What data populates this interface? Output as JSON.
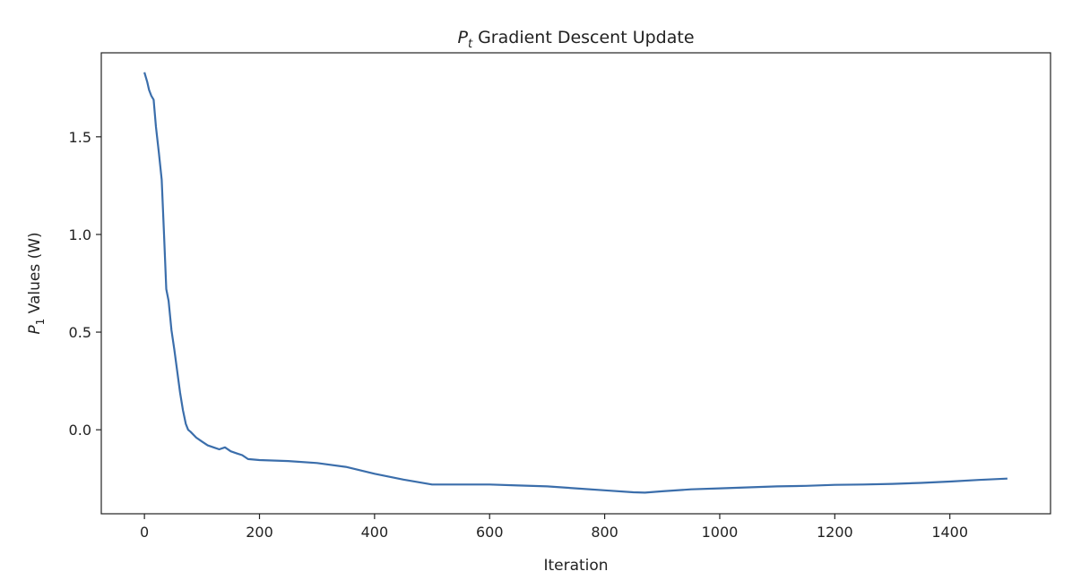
{
  "chart_data": {
    "type": "line",
    "title": {
      "symbol": "P",
      "subscript": "t",
      "text": " Gradient Descent Update"
    },
    "xlabel": "Iteration",
    "ylabel": {
      "symbol": "P",
      "subscript": "1",
      "text": " Values (W)"
    },
    "xlim": [
      -75,
      1575
    ],
    "ylim": [
      -0.43,
      1.93
    ],
    "xticks": [
      0,
      200,
      400,
      600,
      800,
      1000,
      1200,
      1400
    ],
    "xtick_labels": [
      "0",
      "200",
      "400",
      "600",
      "800",
      "1000",
      "1200",
      "1400"
    ],
    "yticks": [
      0.0,
      0.5,
      1.0,
      1.5
    ],
    "ytick_labels": [
      "0.0",
      "0.5",
      "1.0",
      "1.5"
    ],
    "grid": false,
    "colors": {
      "line": "#3b6eab",
      "axes": "#222222"
    },
    "series": [
      {
        "x": [
          0,
          5,
          8,
          12,
          16,
          20,
          25,
          30,
          34,
          38,
          42,
          47,
          52,
          57,
          62,
          67,
          72,
          76,
          80,
          90,
          100,
          110,
          120,
          130,
          140,
          150,
          160,
          170,
          180,
          200,
          250,
          300,
          350,
          400,
          450,
          500,
          550,
          600,
          650,
          700,
          750,
          800,
          850,
          870,
          900,
          950,
          1000,
          1050,
          1100,
          1150,
          1200,
          1250,
          1300,
          1350,
          1400,
          1450,
          1500
        ],
        "y": [
          1.83,
          1.78,
          1.74,
          1.71,
          1.69,
          1.55,
          1.42,
          1.28,
          1.0,
          0.72,
          0.66,
          0.51,
          0.41,
          0.3,
          0.19,
          0.1,
          0.03,
          0.0,
          -0.01,
          -0.04,
          -0.06,
          -0.08,
          -0.09,
          -0.1,
          -0.09,
          -0.11,
          -0.12,
          -0.13,
          -0.15,
          -0.155,
          -0.16,
          -0.17,
          -0.19,
          -0.225,
          -0.255,
          -0.28,
          -0.28,
          -0.28,
          -0.285,
          -0.29,
          -0.3,
          -0.31,
          -0.32,
          -0.322,
          -0.315,
          -0.305,
          -0.3,
          -0.295,
          -0.29,
          -0.287,
          -0.282,
          -0.28,
          -0.277,
          -0.272,
          -0.265,
          -0.257,
          -0.25
        ]
      }
    ]
  }
}
